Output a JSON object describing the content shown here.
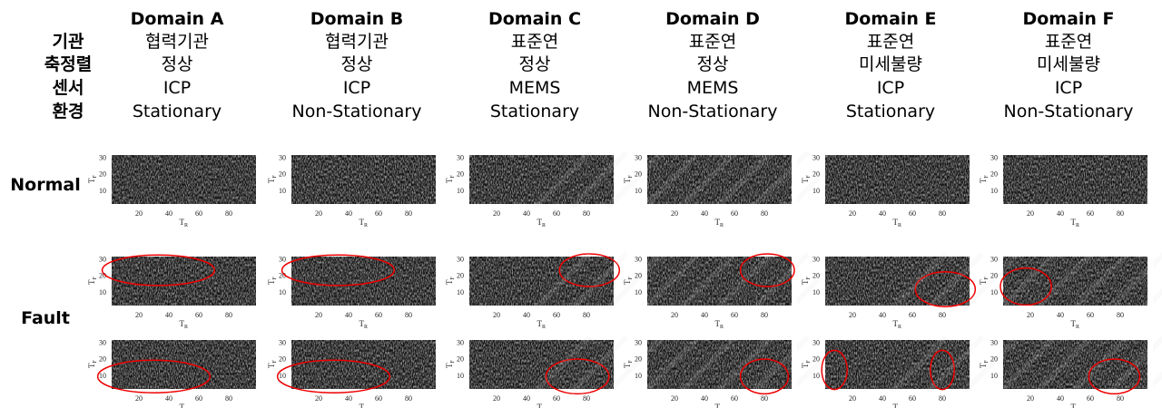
{
  "row_headers": [
    "기관",
    "축정렬",
    "센서",
    "환경"
  ],
  "domains": [
    {
      "name": "Domain A",
      "fields": [
        "협력기관",
        "정상",
        "ICP",
        "Stationary"
      ]
    },
    {
      "name": "Domain B",
      "fields": [
        "협력기관",
        "정상",
        "ICP",
        "Non-Stationary"
      ]
    },
    {
      "name": "Domain C",
      "fields": [
        "표준연",
        "정상",
        "MEMS",
        "Stationary"
      ]
    },
    {
      "name": "Domain D",
      "fields": [
        "표준연",
        "정상",
        "MEMS",
        "Non-Stationary"
      ]
    },
    {
      "name": "Domain E",
      "fields": [
        "표준연",
        "미세불량",
        "ICP",
        "Stationary"
      ]
    },
    {
      "name": "Domain F",
      "fields": [
        "표준연",
        "미세불량",
        "ICP",
        "Non-Stationary"
      ]
    }
  ],
  "conditions": [
    "Normal",
    "Fault"
  ],
  "axes": {
    "y_ticks": [
      10,
      20,
      30
    ],
    "x_ticks": [
      20,
      40,
      60,
      80
    ],
    "y_label": "T",
    "y_label_sub": "F",
    "x_label": "T",
    "x_label_sub": "R"
  }
}
